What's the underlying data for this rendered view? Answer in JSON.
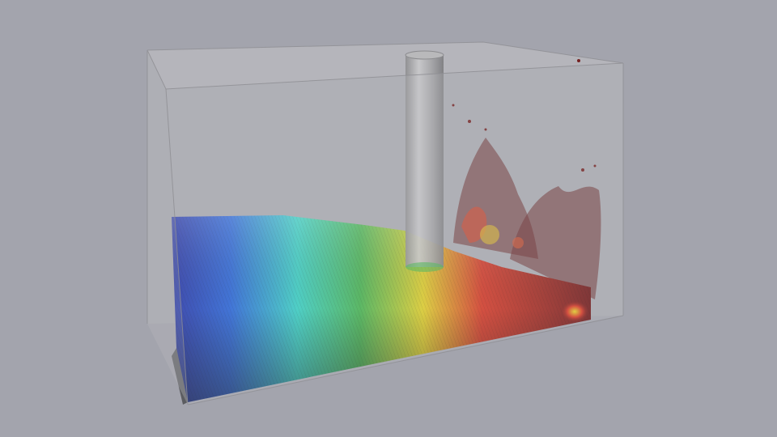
{
  "scene": {
    "background_color": "#a3a4ad",
    "container_color": "#b3b3b7",
    "cylinder_color": "#a7a7a9",
    "colormap": [
      "#1a1aa8",
      "#1e5fdc",
      "#2fd3c6",
      "#3fb54a",
      "#e4d21f",
      "#d9301c",
      "#6e1010"
    ],
    "colormap_name": "rainbow"
  }
}
